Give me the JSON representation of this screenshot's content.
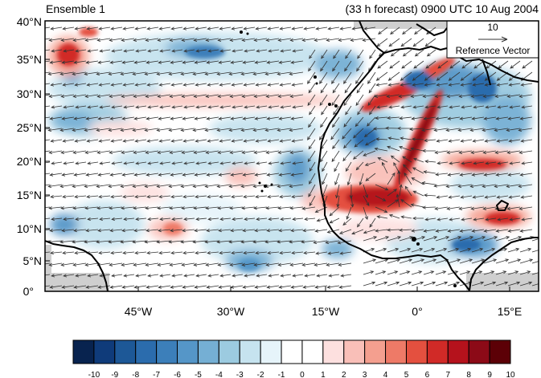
{
  "map": {
    "title_left": "Ensemble 1",
    "title_right": "(33 h forecast) 0900 UTC 10 Aug 2004",
    "lat_labels": [
      "40°N",
      "35°N",
      "30°N",
      "25°N",
      "20°N",
      "15°N",
      "10°N",
      "5°N",
      "0°"
    ],
    "lon_labels": [
      "45°W",
      "30°W",
      "15°W",
      "0°",
      "15°E"
    ],
    "reference_vector": {
      "magnitude": "10",
      "label": "Reference Vector"
    },
    "colorbar": {
      "labels": [
        "-10",
        "-9",
        "-8",
        "-7",
        "-6",
        "-5",
        "-4",
        "-3",
        "-2",
        "-1",
        "0",
        "1",
        "2",
        "3",
        "4",
        "5",
        "6",
        "7",
        "8",
        "9",
        "10"
      ],
      "colors": [
        "#08234f",
        "#0f3b7a",
        "#1d5897",
        "#2b6cad",
        "#3c7fba",
        "#5596c8",
        "#75afd4",
        "#9ccbe0",
        "#c6e3ef",
        "#e6f4fa",
        "#ffffff",
        "#ffffff",
        "#fde0df",
        "#f9bfb8",
        "#f49f8f",
        "#ee7a67",
        "#e4503f",
        "#d12a27",
        "#b5121c",
        "#8c0a17",
        "#5c0006"
      ]
    },
    "colors": {
      "coast": "#000000",
      "land_missing": "#cfcfcf",
      "vector": "#333333"
    }
  }
}
